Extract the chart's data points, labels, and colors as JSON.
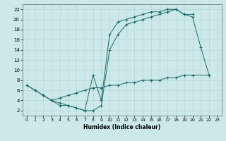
{
  "xlabel": "Humidex (Indice chaleur)",
  "bg_color": "#cce8e8",
  "line_color": "#1a6b6b",
  "xlim": [
    -0.5,
    23.5
  ],
  "ylim": [
    1,
    23
  ],
  "yticks": [
    2,
    4,
    6,
    8,
    10,
    12,
    14,
    16,
    18,
    20,
    22
  ],
  "xticks": [
    0,
    1,
    2,
    3,
    4,
    5,
    6,
    7,
    8,
    9,
    10,
    11,
    12,
    13,
    14,
    15,
    16,
    17,
    18,
    19,
    20,
    21,
    22,
    23
  ],
  "line1_x": [
    0,
    1,
    2,
    3,
    4,
    5,
    6,
    7,
    8,
    9,
    10,
    11,
    12,
    13,
    14,
    15,
    16,
    17,
    18,
    19,
    20,
    21,
    22
  ],
  "line1_y": [
    7,
    6,
    5,
    4,
    3,
    3,
    2.5,
    2,
    2,
    3,
    14,
    17,
    19,
    19.5,
    20,
    20.5,
    21,
    21.5,
    22,
    21,
    20.5,
    14.5,
    9
  ],
  "line2_x": [
    0,
    1,
    2,
    3,
    4,
    5,
    6,
    7,
    8,
    9,
    10,
    11,
    12,
    13,
    14,
    15,
    16,
    17,
    18,
    19,
    20
  ],
  "line2_y": [
    7,
    6,
    5,
    4,
    3.5,
    3,
    2.5,
    2,
    9,
    4,
    17,
    19.5,
    20,
    20.5,
    21,
    21.5,
    21.5,
    22,
    22,
    21,
    21
  ],
  "line3_x": [
    3,
    4,
    5,
    6,
    7,
    8,
    9,
    10,
    11,
    12,
    13,
    14,
    15,
    16,
    17,
    18,
    19,
    20,
    22
  ],
  "line3_y": [
    4,
    4.5,
    5,
    5.5,
    6,
    6.5,
    6.5,
    7,
    7,
    7.5,
    7.5,
    8,
    8,
    8,
    8.5,
    8.5,
    9,
    9,
    9
  ]
}
